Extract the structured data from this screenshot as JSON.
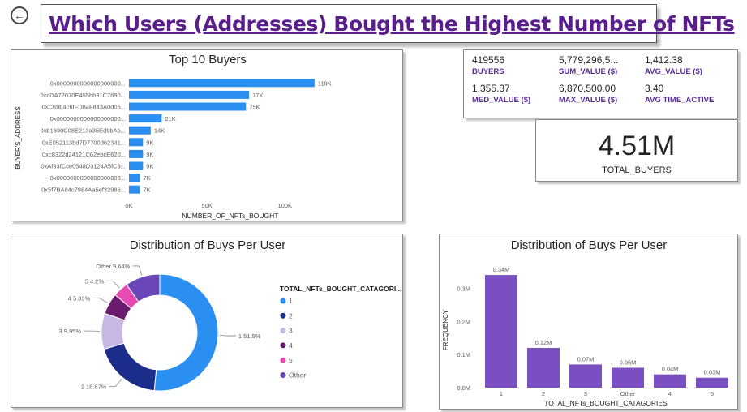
{
  "header": {
    "title": "Which Users (Addresses) Bought the Highest Number of NFTs"
  },
  "colors": {
    "title": "#5a1e8c",
    "bar_blue": "#2b8ff2",
    "purple": "#7a4fc2",
    "kpi_label": "#5a2a9a"
  },
  "kpi": {
    "buyers": {
      "value": "419556",
      "label": "BUYERS"
    },
    "sum_value": {
      "value": "5,779,296,5...",
      "label": "SUM_VALUE ($)"
    },
    "avg_value": {
      "value": "1,412.38",
      "label": "AVG_VALUE ($)"
    },
    "med_value": {
      "value": "1,355.37",
      "label": "MED_VALUE ($)"
    },
    "max_value": {
      "value": "6,870,500.00",
      "label": "MAX_VALUE ($)"
    },
    "avg_time": {
      "value": "3.40",
      "label": "AVG TIME_ACTIVE"
    }
  },
  "total_buyers": {
    "value": "4.51M",
    "label": "TOTAL_BUYERS"
  },
  "chart_data": [
    {
      "type": "bar",
      "orientation": "horizontal",
      "title": "Top 10 Buyers",
      "ylabel": "BUYER'S_ADDRESS",
      "xlabel": "NUMBER_OF_NFTs_BOUGHT",
      "xlim": [
        0,
        130000
      ],
      "xticks": [
        0,
        50000,
        100000
      ],
      "xtick_labels": [
        "0K",
        "50K",
        "100K"
      ],
      "categories": [
        "0x0000000000000000000...",
        "0xcDA72070E455bb31C7690...",
        "0xC69b4c6fFD8aF843A0d05...",
        "0x0000000000000000000...",
        "0xb1690C08E213a35Ed9bAb...",
        "0xE052113bd7D7700d62341...",
        "0xc8322d24121C62ebcE620...",
        "0xAf93fCce0548D3124A5fC3...",
        "0x0000000000000000000...",
        "0x5f7BA84c7984Aa5ef32986..."
      ],
      "values": [
        119000,
        77000,
        75000,
        21000,
        14000,
        9000,
        9000,
        9000,
        7000,
        7000
      ],
      "data_labels": [
        "119K",
        "77K",
        "75K",
        "21K",
        "14K",
        "9K",
        "9K",
        "9K",
        "7K",
        "7K"
      ]
    },
    {
      "type": "pie",
      "style": "donut",
      "title": "Distribution of Buys Per User",
      "legend_title": "TOTAL_NFTs_BOUGHT_CATAGORI...",
      "legend_position": "right",
      "slices": [
        {
          "label": "1",
          "percent": 51.5,
          "data_label": "1 51.5%",
          "color": "#2b8ff2"
        },
        {
          "label": "2",
          "percent": 18.87,
          "data_label": "2 18.87%",
          "color": "#1c2d8c"
        },
        {
          "label": "3",
          "percent": 9.95,
          "data_label": "3 9.95%",
          "color": "#c7b8e6"
        },
        {
          "label": "4",
          "percent": 5.83,
          "data_label": "4 5.83%",
          "color": "#6a1b6f"
        },
        {
          "label": "5",
          "percent": 4.2,
          "data_label": "5 4.2%",
          "color": "#e64bb4"
        },
        {
          "label": "Other",
          "percent": 9.64,
          "data_label": "Other 9.64%",
          "color": "#6b46b8"
        }
      ]
    },
    {
      "type": "bar",
      "orientation": "vertical",
      "title": "Distribution of Buys Per User",
      "xlabel": "TOTAL_NFTs_BOUGHT_CATAGORIES",
      "ylabel": "FREQUENCY",
      "ylim": [
        0,
        0.35
      ],
      "yticks": [
        0,
        0.1,
        0.2,
        0.3
      ],
      "ytick_labels": [
        "0.0M",
        "0.1M",
        "0.2M",
        "0.3M"
      ],
      "categories": [
        "1",
        "2",
        "3",
        "Other",
        "4",
        "5"
      ],
      "values": [
        0.34,
        0.12,
        0.07,
        0.06,
        0.04,
        0.03
      ],
      "data_labels": [
        "0.34M",
        "0.12M",
        "0.07M",
        "0.06M",
        "0.04M",
        "0.03M"
      ]
    }
  ]
}
